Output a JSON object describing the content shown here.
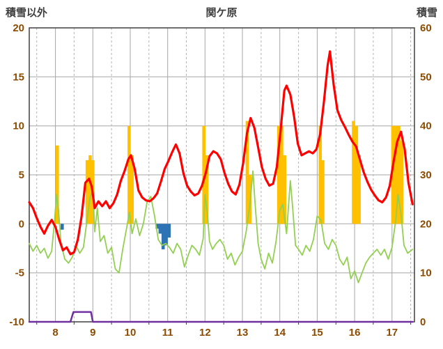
{
  "chart_data": {
    "type": "combo",
    "title": "関ケ原",
    "left_axis": {
      "label": "積雪以外",
      "min": -10,
      "max": 20,
      "ticks": [
        20,
        15,
        10,
        5,
        0,
        -5,
        -10
      ]
    },
    "right_axis": {
      "label": "積雪",
      "min": 0,
      "max": 60,
      "ticks": [
        60,
        50,
        40,
        30,
        20,
        10,
        0
      ]
    },
    "x_axis": {
      "min": 7.3,
      "max": 17.6,
      "ticks": [
        8,
        9,
        10,
        11,
        12,
        13,
        14,
        15,
        16,
        17
      ],
      "minor_ticks": [
        7.5,
        8.5,
        9.5,
        10.5,
        11.5,
        12.5,
        13.5,
        14.5,
        15.5,
        16.5,
        17.5
      ]
    },
    "grid": {
      "major_color": "#A6A6A6",
      "minor_color": "#B3B3B3",
      "border_color": "#3F3F3F"
    },
    "bar_width": 0.085,
    "series": [
      {
        "name": "orange-bars",
        "type": "bar",
        "axis": "left",
        "color": "#FFC000",
        "points": [
          [
            8.05,
            8
          ],
          [
            8.85,
            6.5
          ],
          [
            8.93,
            7
          ],
          [
            9.0,
            6.5
          ],
          [
            9.97,
            10
          ],
          [
            10.05,
            7
          ],
          [
            11.97,
            10
          ],
          [
            12.05,
            7
          ],
          [
            13.13,
            10.5
          ],
          [
            13.2,
            5
          ],
          [
            13.97,
            10
          ],
          [
            14.05,
            10
          ],
          [
            14.13,
            7
          ],
          [
            15.08,
            10
          ],
          [
            15.15,
            6.5
          ],
          [
            15.97,
            10.5
          ],
          [
            16.05,
            10
          ],
          [
            16.12,
            7
          ],
          [
            17.02,
            10
          ],
          [
            17.1,
            10
          ],
          [
            17.18,
            10
          ],
          [
            17.26,
            8.5
          ]
        ]
      },
      {
        "name": "blue-bars",
        "type": "bar",
        "axis": "left",
        "color": "#2E74B5",
        "points": [
          [
            8.18,
            -0.6
          ],
          [
            10.72,
            -0.5
          ],
          [
            10.8,
            -1
          ],
          [
            10.88,
            -2.6
          ],
          [
            10.96,
            -2.2
          ],
          [
            11.04,
            -1.4
          ]
        ]
      },
      {
        "name": "green-line",
        "type": "line",
        "axis": "left",
        "color": "#92D050",
        "width": 1.8,
        "points": [
          [
            7.3,
            -2
          ],
          [
            7.4,
            -2.8
          ],
          [
            7.5,
            -2.2
          ],
          [
            7.6,
            -3
          ],
          [
            7.7,
            -2.5
          ],
          [
            7.8,
            -3.5
          ],
          [
            7.9,
            -2.8
          ],
          [
            7.98,
            0.5
          ],
          [
            8.03,
            3
          ],
          [
            8.08,
            1.5
          ],
          [
            8.15,
            -2
          ],
          [
            8.25,
            -3.6
          ],
          [
            8.35,
            -4
          ],
          [
            8.45,
            -3.4
          ],
          [
            8.55,
            -2.2
          ],
          [
            8.65,
            -3
          ],
          [
            8.75,
            -2.4
          ],
          [
            8.85,
            0.5
          ],
          [
            8.92,
            2.6
          ],
          [
            9.0,
            3.4
          ],
          [
            9.05,
            -0.8
          ],
          [
            9.12,
            1.6
          ],
          [
            9.2,
            -1.8
          ],
          [
            9.3,
            -1.2
          ],
          [
            9.4,
            -3
          ],
          [
            9.5,
            -2.4
          ],
          [
            9.6,
            -4.6
          ],
          [
            9.7,
            -5
          ],
          [
            9.8,
            -2.6
          ],
          [
            9.9,
            -0.5
          ],
          [
            9.98,
            1.2
          ],
          [
            10.05,
            -1
          ],
          [
            10.15,
            0.5
          ],
          [
            10.25,
            -1.2
          ],
          [
            10.35,
            0
          ],
          [
            10.45,
            2.2
          ],
          [
            10.55,
            2.8
          ],
          [
            10.65,
            0.8
          ],
          [
            10.75,
            -1.6
          ],
          [
            10.85,
            -2.2
          ],
          [
            10.95,
            -2
          ],
          [
            11.05,
            -2.4
          ],
          [
            11.15,
            -3
          ],
          [
            11.25,
            -2
          ],
          [
            11.35,
            -2.6
          ],
          [
            11.45,
            -4.4
          ],
          [
            11.55,
            -3.2
          ],
          [
            11.65,
            -2.2
          ],
          [
            11.75,
            -2.6
          ],
          [
            11.85,
            -3.2
          ],
          [
            11.95,
            -1.5
          ],
          [
            12.0,
            3
          ],
          [
            12.06,
            1.2
          ],
          [
            12.12,
            -1.8
          ],
          [
            12.2,
            -2.6
          ],
          [
            12.3,
            -2
          ],
          [
            12.4,
            -1.6
          ],
          [
            12.5,
            -2.2
          ],
          [
            12.6,
            -3.6
          ],
          [
            12.7,
            -3
          ],
          [
            12.8,
            -4.2
          ],
          [
            12.9,
            -3.4
          ],
          [
            13.0,
            -2.8
          ],
          [
            13.1,
            -0.8
          ],
          [
            13.2,
            2
          ],
          [
            13.28,
            5.4
          ],
          [
            13.34,
            2
          ],
          [
            13.42,
            -2
          ],
          [
            13.5,
            -3.6
          ],
          [
            13.6,
            -4.6
          ],
          [
            13.7,
            -3
          ],
          [
            13.8,
            -4
          ],
          [
            13.9,
            -1.8
          ],
          [
            14.0,
            1.4
          ],
          [
            14.08,
            2
          ],
          [
            14.18,
            -1
          ],
          [
            14.28,
            4.4
          ],
          [
            14.34,
            1.8
          ],
          [
            14.42,
            -2.2
          ],
          [
            14.5,
            -2.6
          ],
          [
            14.6,
            -3.2
          ],
          [
            14.7,
            -2.2
          ],
          [
            14.8,
            -2.8
          ],
          [
            14.9,
            -1.6
          ],
          [
            15.0,
            0.8
          ],
          [
            15.1,
            0.4
          ],
          [
            15.2,
            -2
          ],
          [
            15.3,
            -2.6
          ],
          [
            15.4,
            -1.6
          ],
          [
            15.5,
            -2.2
          ],
          [
            15.6,
            -3.6
          ],
          [
            15.7,
            -4.2
          ],
          [
            15.8,
            -3.4
          ],
          [
            15.9,
            -5.6
          ],
          [
            16.0,
            -4.8
          ],
          [
            16.1,
            -6
          ],
          [
            16.2,
            -5
          ],
          [
            16.3,
            -4
          ],
          [
            16.4,
            -3.4
          ],
          [
            16.5,
            -3
          ],
          [
            16.6,
            -2.6
          ],
          [
            16.7,
            -3.2
          ],
          [
            16.8,
            -2.6
          ],
          [
            16.9,
            -3.6
          ],
          [
            17.0,
            -2.4
          ],
          [
            17.1,
            0.4
          ],
          [
            17.16,
            3
          ],
          [
            17.24,
            1
          ],
          [
            17.32,
            -2.2
          ],
          [
            17.42,
            -3
          ],
          [
            17.55,
            -2.6
          ]
        ]
      },
      {
        "name": "purple-line",
        "type": "line",
        "axis": "right",
        "color": "#7030A0",
        "width": 2.5,
        "points": [
          [
            7.3,
            0
          ],
          [
            8.4,
            0
          ],
          [
            8.48,
            2
          ],
          [
            8.95,
            2
          ],
          [
            9.0,
            0
          ],
          [
            17.55,
            0
          ]
        ]
      },
      {
        "name": "red-line",
        "type": "line",
        "axis": "left",
        "color": "#FF0000",
        "width": 3.2,
        "points": [
          [
            7.3,
            2.2
          ],
          [
            7.4,
            1.6
          ],
          [
            7.5,
            0.6
          ],
          [
            7.6,
            -0.3
          ],
          [
            7.7,
            -1
          ],
          [
            7.8,
            -0.2
          ],
          [
            7.9,
            0.4
          ],
          [
            8.0,
            -0.3
          ],
          [
            8.1,
            -1.6
          ],
          [
            8.2,
            -2.7
          ],
          [
            8.3,
            -2.4
          ],
          [
            8.4,
            -3.1
          ],
          [
            8.5,
            -2.9
          ],
          [
            8.6,
            -1.6
          ],
          [
            8.7,
            0.8
          ],
          [
            8.8,
            4.2
          ],
          [
            8.9,
            4.6
          ],
          [
            8.97,
            3.8
          ],
          [
            9.05,
            1.6
          ],
          [
            9.15,
            2.3
          ],
          [
            9.25,
            1.8
          ],
          [
            9.35,
            2.3
          ],
          [
            9.45,
            1.6
          ],
          [
            9.55,
            2.1
          ],
          [
            9.65,
            3
          ],
          [
            9.75,
            4.4
          ],
          [
            9.85,
            5.4
          ],
          [
            9.95,
            6.6
          ],
          [
            10.02,
            7
          ],
          [
            10.12,
            5.6
          ],
          [
            10.22,
            3.4
          ],
          [
            10.32,
            2.7
          ],
          [
            10.42,
            2.4
          ],
          [
            10.52,
            2.3
          ],
          [
            10.62,
            2.6
          ],
          [
            10.72,
            3.1
          ],
          [
            10.82,
            4.3
          ],
          [
            10.92,
            5.6
          ],
          [
            11.02,
            6.4
          ],
          [
            11.12,
            7.3
          ],
          [
            11.22,
            8.1
          ],
          [
            11.32,
            7.2
          ],
          [
            11.42,
            5.2
          ],
          [
            11.52,
            3.9
          ],
          [
            11.62,
            3.3
          ],
          [
            11.72,
            2.9
          ],
          [
            11.82,
            3.1
          ],
          [
            11.92,
            3.9
          ],
          [
            12.02,
            5.2
          ],
          [
            12.12,
            6.9
          ],
          [
            12.22,
            7.4
          ],
          [
            12.32,
            7.2
          ],
          [
            12.42,
            6.6
          ],
          [
            12.52,
            5.2
          ],
          [
            12.62,
            4.1
          ],
          [
            12.72,
            3.3
          ],
          [
            12.82,
            3
          ],
          [
            12.92,
            4
          ],
          [
            13.02,
            6.2
          ],
          [
            13.12,
            9.2
          ],
          [
            13.22,
            10.8
          ],
          [
            13.32,
            9.8
          ],
          [
            13.42,
            7.8
          ],
          [
            13.52,
            5.8
          ],
          [
            13.62,
            4.6
          ],
          [
            13.72,
            3.9
          ],
          [
            13.82,
            4.1
          ],
          [
            13.92,
            5.8
          ],
          [
            14.02,
            9.5
          ],
          [
            14.12,
            13.6
          ],
          [
            14.18,
            14.1
          ],
          [
            14.28,
            13.2
          ],
          [
            14.38,
            11
          ],
          [
            14.48,
            8.2
          ],
          [
            14.58,
            7
          ],
          [
            14.68,
            7.2
          ],
          [
            14.78,
            7.4
          ],
          [
            14.88,
            7.2
          ],
          [
            14.98,
            7.6
          ],
          [
            15.08,
            9.2
          ],
          [
            15.18,
            12.5
          ],
          [
            15.28,
            16.2
          ],
          [
            15.34,
            17.6
          ],
          [
            15.44,
            14.2
          ],
          [
            15.54,
            11.6
          ],
          [
            15.64,
            10.6
          ],
          [
            15.74,
            9.9
          ],
          [
            15.84,
            9.1
          ],
          [
            15.94,
            8.4
          ],
          [
            16.04,
            7.9
          ],
          [
            16.14,
            6.6
          ],
          [
            16.24,
            5.3
          ],
          [
            16.34,
            4.3
          ],
          [
            16.44,
            3.5
          ],
          [
            16.54,
            2.9
          ],
          [
            16.64,
            2.4
          ],
          [
            16.74,
            2.2
          ],
          [
            16.84,
            2.7
          ],
          [
            16.94,
            3.9
          ],
          [
            17.04,
            6.3
          ],
          [
            17.14,
            8.4
          ],
          [
            17.24,
            9.4
          ],
          [
            17.34,
            7.6
          ],
          [
            17.44,
            4.2
          ],
          [
            17.55,
            2
          ]
        ]
      }
    ]
  }
}
